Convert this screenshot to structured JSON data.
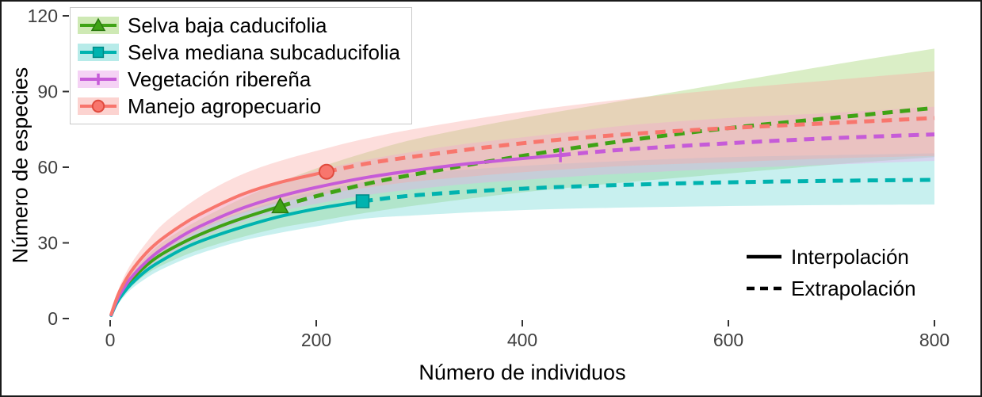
{
  "chart_data": {
    "type": "line",
    "title": "",
    "xlabel": "Número de individuos",
    "ylabel": "Número de especies",
    "xlim": [
      0,
      800
    ],
    "ylim": [
      0,
      120
    ],
    "xticks": [
      0,
      200,
      400,
      600,
      800
    ],
    "yticks": [
      0,
      30,
      60,
      90,
      120
    ],
    "grid": false,
    "legend_series_position": "top-left",
    "legend_linetype_position": "bottom-right",
    "tick_color": "#404040",
    "linetypes": [
      {
        "label": "Interpolación",
        "style": "solid"
      },
      {
        "label": "Extrapolación",
        "style": "dashed"
      }
    ],
    "series": [
      {
        "name": "Selva baja caducifolia",
        "color": "#3fa315",
        "fill": "#9ed36a",
        "marker": "triangle",
        "marker_stroke": "#2c7a10",
        "interp_end": 165,
        "x": [
          1,
          5,
          10,
          20,
          35,
          50,
          75,
          100,
          130,
          165,
          200,
          250,
          300,
          400,
          500,
          600,
          700,
          800
        ],
        "y": [
          1.4,
          5.5,
          9.5,
          15,
          21,
          25.5,
          31,
          35.5,
          40,
          44.5,
          48.5,
          53.5,
          57.5,
          64.5,
          70.5,
          75.5,
          79.5,
          83.5
        ],
        "lower": [
          1,
          4.5,
          8,
          12.5,
          17.5,
          21,
          25.5,
          29,
          32.5,
          36,
          38.5,
          42,
          45,
          50,
          54,
          57.5,
          61,
          64
        ],
        "upper": [
          1.8,
          6.5,
          11,
          17.5,
          24.5,
          30,
          36.5,
          42,
          48,
          54,
          59.5,
          66,
          71.5,
          79.5,
          86.5,
          93.5,
          100.5,
          107
        ]
      },
      {
        "name": "Selva mediana subcaducifolia",
        "color": "#00b3af",
        "fill": "#6fd8d4",
        "marker": "square",
        "marker_stroke": "#008a86",
        "interp_end": 245,
        "x": [
          1,
          5,
          10,
          20,
          35,
          50,
          75,
          100,
          130,
          165,
          200,
          245,
          300,
          400,
          500,
          600,
          700,
          800
        ],
        "y": [
          1.3,
          5,
          8.5,
          13.5,
          19,
          23,
          28.5,
          32.5,
          36.5,
          40.5,
          43.5,
          46.5,
          49,
          51.5,
          53,
          54,
          54.6,
          55
        ],
        "lower": [
          1,
          4,
          7,
          11.5,
          16,
          19.5,
          24,
          27.5,
          31,
          34,
          36.5,
          39.5,
          41,
          43,
          44,
          44.6,
          45,
          45.2
        ],
        "upper": [
          1.6,
          6,
          10,
          16,
          22,
          27,
          33,
          38,
          42.5,
          47,
          50.5,
          54,
          57.5,
          60.5,
          62.5,
          64,
          64.8,
          65.5
        ]
      },
      {
        "name": "Vegetación ribereña",
        "color": "#c65bd8",
        "fill": "#eba6ec",
        "marker": "vline",
        "marker_stroke": "#a13bb5",
        "interp_end": 437,
        "x": [
          1,
          5,
          10,
          20,
          35,
          50,
          75,
          100,
          130,
          165,
          200,
          250,
          300,
          350,
          437,
          500,
          600,
          700,
          800
        ],
        "y": [
          1.5,
          5.8,
          10,
          16,
          22.5,
          27.5,
          34,
          39,
          44,
          48.5,
          52,
          56,
          59,
          61.5,
          64.8,
          67,
          69.5,
          71.5,
          73
        ],
        "lower": [
          1,
          5,
          8.5,
          13.5,
          19.5,
          24,
          29.5,
          34,
          38.5,
          42.5,
          45.5,
          49,
          51.5,
          53.5,
          56,
          57.5,
          59.5,
          61,
          62.5
        ],
        "upper": [
          2,
          6.8,
          11.5,
          18.5,
          25.5,
          31.5,
          38.5,
          44.5,
          50,
          54.5,
          58.5,
          63,
          66.5,
          69.5,
          73.5,
          76.5,
          79.5,
          81.5,
          84
        ]
      },
      {
        "name": "Manejo agropecuario",
        "color": "#f8766d",
        "fill": "#f9a8a2",
        "marker": "circle",
        "marker_stroke": "#e04b3e",
        "interp_end": 210,
        "x": [
          1,
          5,
          10,
          20,
          35,
          50,
          75,
          100,
          130,
          165,
          210,
          250,
          300,
          400,
          500,
          600,
          700,
          800
        ],
        "y": [
          1.7,
          6.5,
          11.5,
          18.5,
          26,
          31.5,
          38.5,
          44,
          49.5,
          54,
          58.2,
          61.5,
          64.5,
          69.5,
          73,
          75.5,
          77.5,
          79.5
        ],
        "lower": [
          1.2,
          5.5,
          9.5,
          15.5,
          22,
          26.5,
          32.5,
          37.5,
          42,
          46,
          49.5,
          52,
          54.5,
          58,
          60.5,
          62,
          63.5,
          64.5
        ],
        "upper": [
          2.2,
          7.5,
          13.5,
          21.5,
          30,
          37,
          45,
          51.5,
          57.5,
          62.5,
          67.5,
          71.5,
          75.5,
          82,
          87,
          91,
          94.5,
          98
        ]
      }
    ]
  }
}
